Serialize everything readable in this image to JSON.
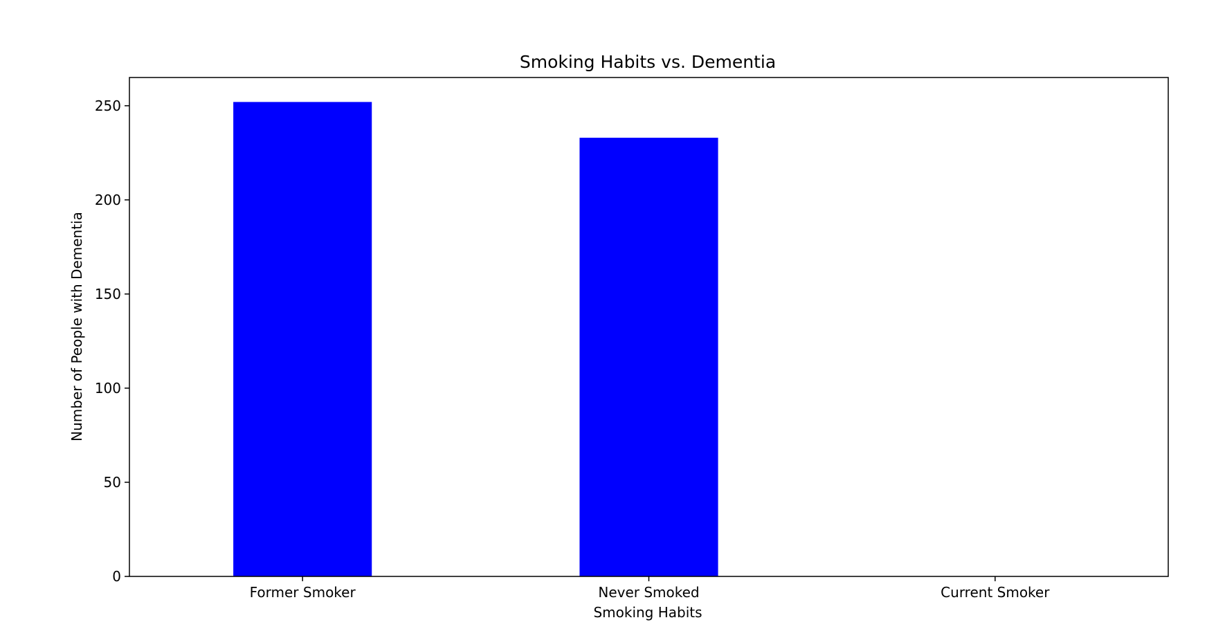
{
  "chart_data": {
    "type": "bar",
    "title": "Smoking Habits vs. Dementia",
    "xlabel": "Smoking Habits",
    "ylabel": "Number of People with Dementia",
    "categories": [
      "Former Smoker",
      "Never Smoked",
      "Current Smoker"
    ],
    "values": [
      252,
      233,
      0
    ],
    "ylim": [
      0,
      265
    ],
    "yticks": [
      0,
      50,
      100,
      150,
      200,
      250
    ],
    "grid": false,
    "legend": "none",
    "bar_color": "#0000ff"
  }
}
